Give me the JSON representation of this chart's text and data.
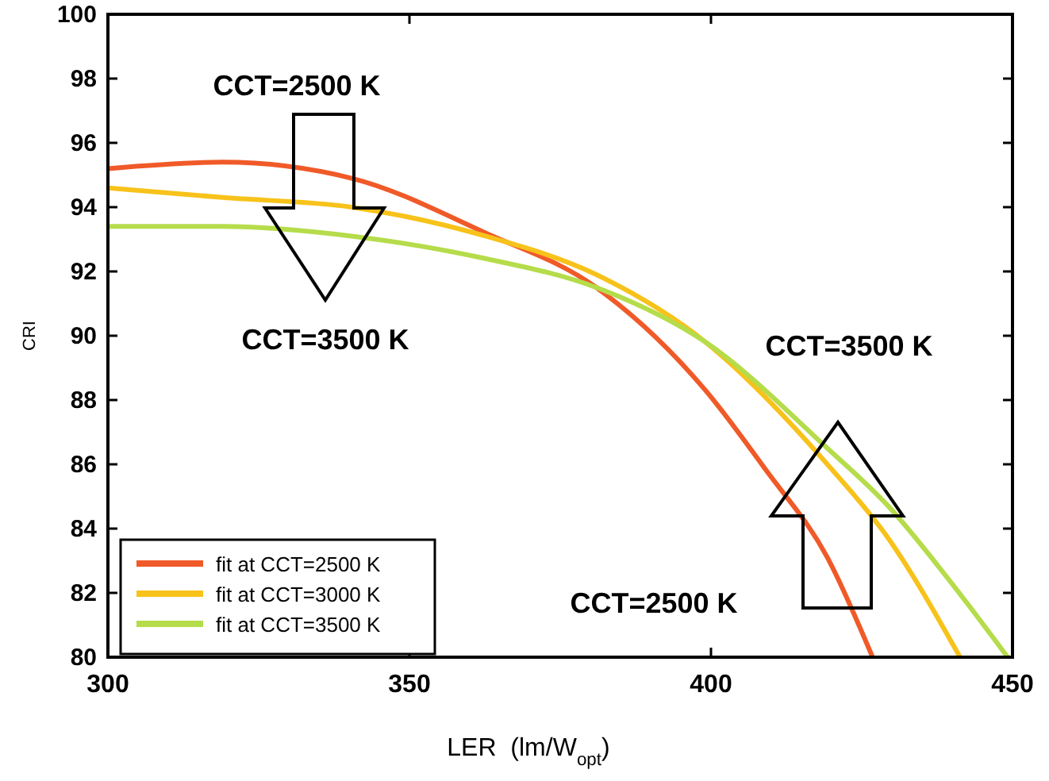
{
  "chart_data": {
    "type": "line",
    "xlabel": "LER  (lm/W$_{opt}$)",
    "ylabel": "CRI",
    "xlim": [
      300,
      450
    ],
    "xticks": [
      300,
      350,
      400,
      450
    ],
    "ylim": [
      80,
      100
    ],
    "yticks": [
      80,
      82,
      84,
      86,
      88,
      90,
      92,
      94,
      96,
      98,
      100
    ],
    "grid": false,
    "legend": "bottom left",
    "marker": "none",
    "line_style": "solid",
    "series": [
      {
        "name": "fit at CCT=2500 K",
        "color": "#f05a28",
        "x": [
          300,
          319,
          340.4,
          362.6,
          381,
          399.1,
          409.2,
          419.3,
          426.8
        ],
        "values": [
          95.2,
          95.4,
          94.9,
          93.2,
          91.5,
          88.3,
          85.8,
          83.1,
          80
        ]
      },
      {
        "name": "fit at CCT=3000 K",
        "color": "#f7c21a",
        "x": [
          300,
          319,
          340.4,
          362.6,
          381,
          399.1,
          419.3,
          429.4,
          441.3
        ],
        "values": [
          94.6,
          94.3,
          94.0,
          93.1,
          91.9,
          89.8,
          86.0,
          83.7,
          80
        ]
      },
      {
        "name": "fit at CCT=3500 K",
        "color": "#b5dc4a",
        "x": [
          300,
          319,
          340.4,
          362.6,
          381,
          399.1,
          419.3,
          429.4,
          439.5,
          449.2
        ],
        "values": [
          93.4,
          93.4,
          93.1,
          92.4,
          91.5,
          89.8,
          86.5,
          84.7,
          82.4,
          80
        ]
      }
    ],
    "annotations": [
      "CCT=2500 K",
      "CCT=3500 K",
      "CCT=3500 K",
      "CCT=2500 K"
    ]
  }
}
